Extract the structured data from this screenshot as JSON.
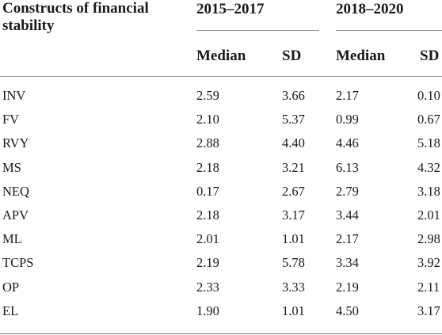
{
  "table": {
    "header": {
      "first_col": "Constructs of financial stability",
      "periods": [
        "2015–2017",
        "2018–2020"
      ],
      "sub_headers": [
        "Median",
        "SD",
        "Median",
        "SD"
      ]
    },
    "rows": [
      {
        "name": "INV",
        "values": [
          "2.59",
          "3.66",
          "2.17",
          "0.10"
        ]
      },
      {
        "name": "FV",
        "values": [
          "2.10",
          "5.37",
          "0.99",
          "0.67"
        ]
      },
      {
        "name": "RVY",
        "values": [
          "2.88",
          "4.40",
          "4.46",
          "5.18"
        ]
      },
      {
        "name": "MS",
        "values": [
          "2.18",
          "3.21",
          "6.13",
          "4.32"
        ]
      },
      {
        "name": "NEQ",
        "values": [
          "0.17",
          "2.67",
          "2.79",
          "3.18"
        ]
      },
      {
        "name": "APV",
        "values": [
          "2.18",
          "3.17",
          "3.44",
          "2.01"
        ]
      },
      {
        "name": "ML",
        "values": [
          "2.01",
          "1.01",
          "2.17",
          "2.98"
        ]
      },
      {
        "name": "TCPS",
        "values": [
          "2.19",
          "5.78",
          "3.34",
          "3.92"
        ]
      },
      {
        "name": "OP",
        "values": [
          "2.33",
          "3.33",
          "2.19",
          "2.11"
        ]
      },
      {
        "name": "EL",
        "values": [
          "1.90",
          "1.01",
          "4.50",
          "3.17"
        ]
      }
    ]
  }
}
